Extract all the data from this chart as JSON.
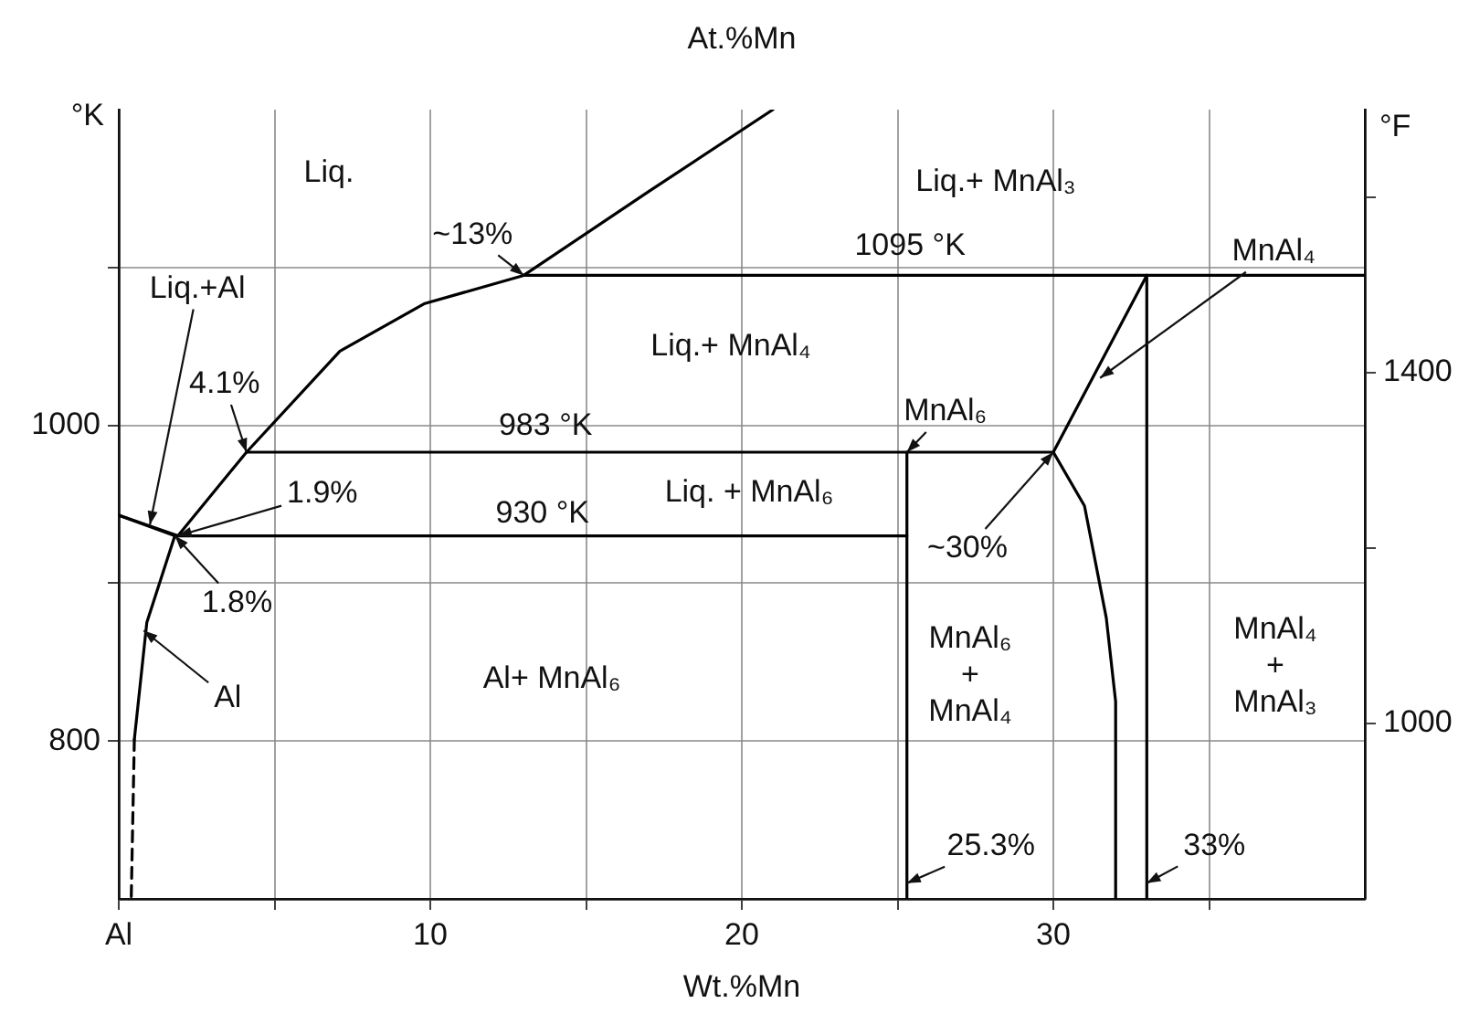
{
  "chart_data": {
    "type": "line",
    "title": "At.%Mn",
    "xlabel": "Wt.%Mn",
    "ylabel": "°K",
    "y2label": "°F",
    "xlim": [
      0,
      40
    ],
    "xticks": [
      {
        "value": 0,
        "label": "Al"
      },
      {
        "value": 5,
        "label": null
      },
      10,
      {
        "value": 15,
        "label": null
      },
      20,
      {
        "value": 25,
        "label": null
      },
      30,
      {
        "value": 35,
        "label": null
      }
    ],
    "ylim": [
      700,
      1200
    ],
    "yticks": [
      800,
      {
        "value": 900,
        "label": null
      },
      1000,
      {
        "value": 1100,
        "label": null
      }
    ],
    "y2lim": [
      800,
      1700
    ],
    "y2ticks": [
      1000,
      {
        "value": 1200,
        "label": null
      },
      1400,
      {
        "value": 1600,
        "label": null
      }
    ],
    "grid": true,
    "legend": false,
    "marker": "none",
    "line_style": "solid",
    "series": [
      {
        "color": "#000000",
        "x": [
          0,
          1.9,
          4.1,
          7.1,
          9.8,
          13,
          17,
          21
        ],
        "values": [
          943,
          930,
          983,
          1047,
          1077,
          1095,
          1148,
          1200
        ]
      },
      {
        "color": "#000000",
        "x": [
          0,
          1.8
        ],
        "values": [
          943,
          930
        ]
      },
      {
        "color": "#000000",
        "x": [
          25.3,
          1.8,
          0.9,
          0.5
        ],
        "values": [
          930,
          930,
          875,
          801
        ]
      },
      {
        "color": "#000000",
        "line_style": "dashed",
        "x": [
          0.5,
          0.4
        ],
        "values": [
          801,
          700
        ]
      },
      {
        "color": "#000000",
        "x": [
          4.1,
          30
        ],
        "values": [
          983,
          983
        ]
      },
      {
        "color": "#000000",
        "x": [
          13,
          40
        ],
        "values": [
          1095,
          1095
        ]
      },
      {
        "color": "#000000",
        "x": [
          25.3,
          25.3
        ],
        "values": [
          983,
          700
        ]
      },
      {
        "color": "#000000",
        "x": [
          30,
          33
        ],
        "values": [
          983,
          1095
        ]
      },
      {
        "color": "#000000",
        "x": [
          30,
          31,
          31.7,
          32,
          32
        ],
        "values": [
          983,
          949,
          878,
          825,
          700
        ]
      },
      {
        "color": "#000000",
        "x": [
          33,
          33
        ],
        "values": [
          1095,
          700
        ]
      }
    ],
    "annotations": [
      "Liq.",
      "Liq.+ MnAl₃",
      "Liq.+ MnAl₄",
      "Liq. + MnAl₆",
      "Al+ MnAl₆",
      "MnAl₆ + MnAl₄",
      "MnAl₄ + MnAl₃",
      {
        "text": "1095 °K",
        "x": 25.4,
        "y": 1095
      },
      {
        "text": "983 °K",
        "x": 13.7,
        "y": 983
      },
      {
        "text": "930 °K",
        "x": 13.6,
        "y": 930
      },
      {
        "text": "~13%",
        "x": 13,
        "y": 1095
      },
      {
        "text": "Liq.+Al",
        "x": 1,
        "y": 937
      },
      {
        "text": "4.1%",
        "x": 4.1,
        "y": 983
      },
      {
        "text": "1.9%",
        "x": 1.9,
        "y": 930
      },
      {
        "text": "1.8%",
        "x": 1.8,
        "y": 930
      },
      {
        "text": "Al",
        "x": 0.8,
        "y": 870
      },
      {
        "text": "MnAl₆",
        "x": 25.3,
        "y": 983
      },
      {
        "text": "~30%",
        "x": 30,
        "y": 983
      },
      {
        "text": "MnAl₄",
        "x": 31.5,
        "y": 1030
      },
      {
        "text": "25.3%",
        "x": 25.3,
        "y": 710
      },
      {
        "text": "33%",
        "x": 33,
        "y": 710
      }
    ]
  }
}
